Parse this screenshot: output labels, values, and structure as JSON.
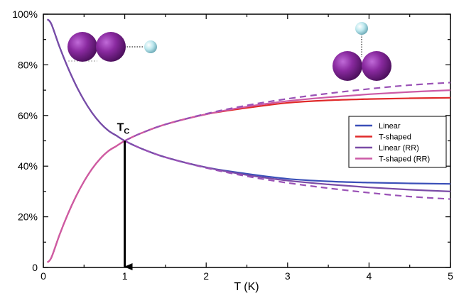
{
  "chart_data": {
    "type": "line",
    "xlabel": "T (K)",
    "xlim": [
      0,
      5
    ],
    "ylim": [
      0,
      100
    ],
    "x_ticks": [
      "0",
      "1",
      "2",
      "3",
      "4",
      "5"
    ],
    "y_ticks": [
      "0",
      "20%",
      "40%",
      "60%",
      "80%",
      "100%"
    ],
    "legend_position": "right",
    "grid": false,
    "annotation": {
      "label_main": "T",
      "label_sub": "C",
      "x": 1.0,
      "y": 50
    },
    "series": [
      {
        "name": "Linear",
        "color": "#3a4fb8",
        "dash": "solid",
        "x": [
          0.05,
          0.1,
          0.2,
          0.3,
          0.4,
          0.5,
          0.6,
          0.7,
          0.8,
          0.9,
          1.0,
          1.2,
          1.5,
          2.0,
          2.5,
          3.0,
          3.5,
          4.0,
          4.5,
          5.0
        ],
        "y": [
          98,
          96,
          87,
          79,
          72,
          66,
          61,
          57,
          54,
          52,
          50,
          47,
          43.5,
          39.5,
          37,
          35,
          34,
          33.5,
          33.2,
          33
        ]
      },
      {
        "name": "T-shaped",
        "color": "#e02a2a",
        "dash": "solid",
        "x": [
          0.05,
          0.1,
          0.2,
          0.3,
          0.4,
          0.5,
          0.6,
          0.7,
          0.8,
          0.9,
          1.0,
          1.2,
          1.5,
          2.0,
          2.5,
          3.0,
          3.5,
          4.0,
          4.5,
          5.0
        ],
        "y": [
          2,
          4,
          13,
          21,
          28,
          34,
          39,
          43,
          46,
          48,
          50,
          53,
          56.5,
          60.5,
          63,
          65,
          66,
          66.5,
          66.8,
          67
        ]
      },
      {
        "name": "Linear (RR)",
        "color": "#7a4ba6",
        "dash": "solid",
        "x": [
          0.05,
          0.1,
          0.2,
          0.3,
          0.4,
          0.5,
          0.6,
          0.7,
          0.8,
          0.9,
          1.0,
          1.2,
          1.5,
          2.0,
          2.5,
          3.0,
          3.5,
          4.0,
          4.5,
          5.0
        ],
        "y": [
          98,
          96,
          87,
          79,
          72,
          66,
          61,
          57,
          54,
          52,
          50,
          47,
          43.5,
          39.5,
          36.5,
          34.3,
          32.8,
          31.6,
          30.7,
          30
        ]
      },
      {
        "name": "T-shaped  (RR)",
        "color": "#cc5aa6",
        "dash": "solid",
        "x": [
          0.05,
          0.1,
          0.2,
          0.3,
          0.4,
          0.5,
          0.6,
          0.7,
          0.8,
          0.9,
          1.0,
          1.2,
          1.5,
          2.0,
          2.5,
          3.0,
          3.5,
          4.0,
          4.5,
          5.0
        ],
        "y": [
          2,
          4,
          13,
          21,
          28,
          34,
          39,
          43,
          46,
          48,
          50,
          53,
          56.5,
          60.5,
          63.5,
          65.7,
          67.2,
          68.4,
          69.3,
          70
        ]
      },
      {
        "color": "#9a52b6",
        "dash": "dashed",
        "x": [
          1.0,
          1.2,
          1.5,
          2.0,
          2.5,
          3.0,
          3.5,
          4.0,
          4.5,
          5.0
        ],
        "y": [
          50,
          47,
          43.5,
          39.3,
          36,
          33.4,
          31.3,
          29.5,
          28,
          27
        ]
      },
      {
        "color": "#9a52b6",
        "dash": "dashed",
        "x": [
          1.0,
          1.2,
          1.5,
          2.0,
          2.5,
          3.0,
          3.5,
          4.0,
          4.5,
          5.0
        ],
        "y": [
          50,
          53,
          56.5,
          60.7,
          64,
          66.6,
          68.7,
          70.5,
          72,
          73
        ]
      }
    ]
  }
}
